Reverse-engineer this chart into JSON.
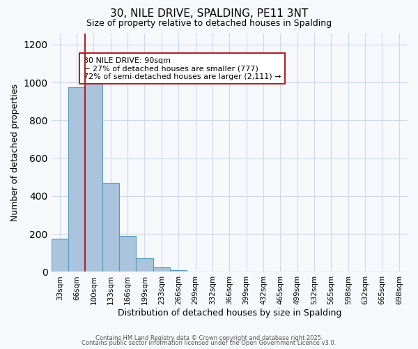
{
  "title": "30, NILE DRIVE, SPALDING, PE11 3NT",
  "subtitle": "Size of property relative to detached houses in Spalding",
  "xlabel": "Distribution of detached houses by size in Spalding",
  "ylabel": "Number of detached properties",
  "bin_labels": [
    "33sqm",
    "66sqm",
    "100sqm",
    "133sqm",
    "166sqm",
    "199sqm",
    "233sqm",
    "266sqm",
    "299sqm",
    "332sqm",
    "366sqm",
    "399sqm",
    "432sqm",
    "465sqm",
    "499sqm",
    "532sqm",
    "565sqm",
    "598sqm",
    "632sqm",
    "665sqm",
    "698sqm"
  ],
  "bar_heights": [
    175,
    975,
    1000,
    470,
    190,
    70,
    22,
    10,
    0,
    0,
    0,
    0,
    0,
    0,
    0,
    0,
    0,
    0,
    0,
    0,
    0
  ],
  "ylim": [
    0,
    1260
  ],
  "yticks": [
    0,
    200,
    400,
    600,
    800,
    1000,
    1200
  ],
  "bar_color": "#aac4dd",
  "bar_edge_color": "#5a9abf",
  "vline_pos": 1.5,
  "vline_color": "#b22222",
  "annotation_title": "30 NILE DRIVE: 90sqm",
  "annotation_line1": "← 27% of detached houses are smaller (777)",
  "annotation_line2": "72% of semi-detached houses are larger (2,111) →",
  "annotation_box_edge": "#b22222",
  "footnote1": "Contains HM Land Registry data © Crown copyright and database right 2025.",
  "footnote2": "Contains public sector information licensed under the Open Government Licence v3.0.",
  "background_color": "#f7f8fb",
  "grid_color": "#d0d8e8"
}
